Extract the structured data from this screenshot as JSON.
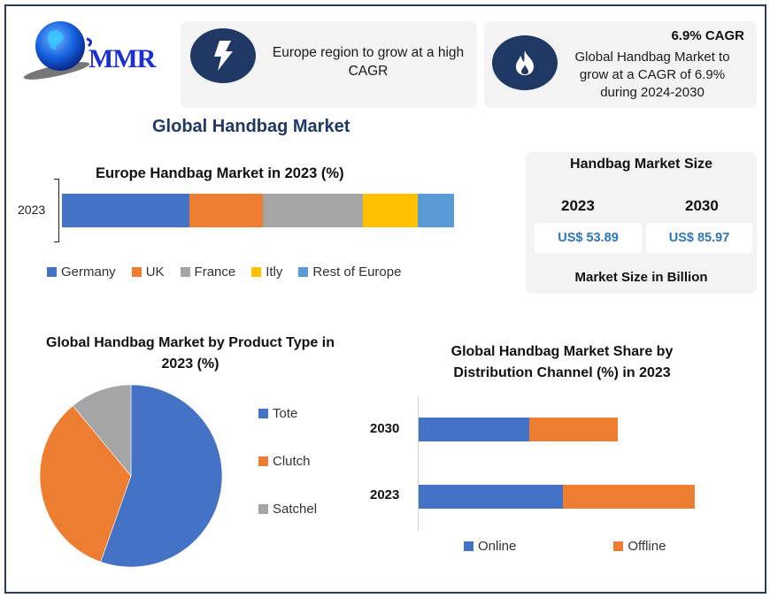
{
  "logo": {
    "text": "MMR"
  },
  "cards": {
    "europe": {
      "icon": "lightning-bolt-icon",
      "text": "Europe  region to grow at a high CAGR"
    },
    "cagr": {
      "icon": "flame-icon",
      "headline": "6.9% CAGR",
      "text": "Global Handbag Market to grow at a CAGR of 6.9% during 2024-2030"
    }
  },
  "main_title": "Global Handbag  Market",
  "market_size": {
    "title": "Handbag Market Size",
    "years": [
      {
        "year": "2023",
        "value": "US$ 53.89"
      },
      {
        "year": "2030",
        "value": "US$ 85.97"
      }
    ],
    "footer": "Market Size in Billion"
  },
  "colors": {
    "blue": "#4472c4",
    "orange": "#ed7d31",
    "gray": "#a5a5a5",
    "yellow": "#ffc000",
    "lightblue": "#5b9bd5",
    "navy": "#1f3864",
    "value_blue": "#2e75b6",
    "frame": "#2b3a55",
    "card_bg": "#f3f3f3"
  },
  "chart_data": [
    {
      "type": "bar",
      "orientation": "horizontal-stacked-100",
      "title": "Europe Handbag Market in 2023 (%)",
      "categories": [
        "2023"
      ],
      "series": [
        {
          "name": "Germany",
          "values": [
            32.5
          ],
          "color": "#4472c4"
        },
        {
          "name": "UK",
          "values": [
            18.7
          ],
          "color": "#ed7d31"
        },
        {
          "name": "France",
          "values": [
            25.5
          ],
          "color": "#a5a5a5"
        },
        {
          "name": "Itly",
          "values": [
            14.0
          ],
          "color": "#ffc000"
        },
        {
          "name": "Rest of Europe",
          "values": [
            9.3
          ],
          "color": "#5b9bd5"
        }
      ],
      "legend_position": "bottom",
      "grid": false
    },
    {
      "type": "pie",
      "title": "Global Handbag Market by Product Type in 2023 (%)",
      "categories": [
        "Tote",
        "Clutch",
        "Satchel"
      ],
      "values": [
        55.4,
        33.6,
        11.0
      ],
      "colors": [
        "#4472c4",
        "#ed7d31",
        "#a5a5a5"
      ],
      "legend_position": "right"
    },
    {
      "type": "bar",
      "orientation": "horizontal-stacked",
      "title": "Global Handbag Market Share by Distribution Channel (%) in 2023",
      "categories": [
        "2030",
        "2023"
      ],
      "series": [
        {
          "name": "Online",
          "values": [
            125,
            163
          ],
          "color": "#4472c4"
        },
        {
          "name": "Offline",
          "values": [
            100,
            149
          ],
          "color": "#ed7d31"
        }
      ],
      "xlim": [
        0,
        320
      ],
      "legend_position": "bottom",
      "grid": false
    }
  ]
}
